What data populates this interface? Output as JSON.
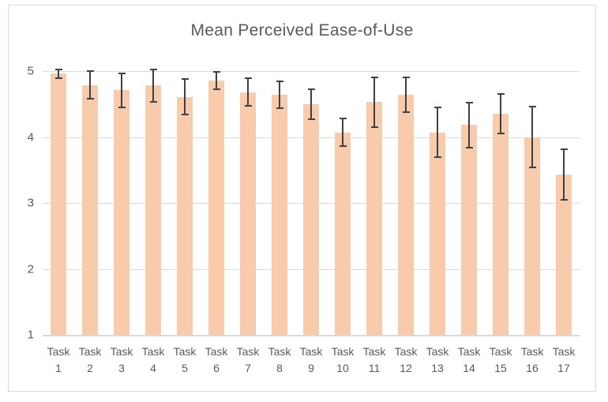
{
  "chart_data": {
    "type": "bar",
    "title": "Mean Perceived Ease-of-Use",
    "xlabel": "",
    "ylabel": "",
    "categories": [
      "Task 1",
      "Task 2",
      "Task 3",
      "Task 4",
      "Task 5",
      "Task 6",
      "Task 7",
      "Task 8",
      "Task 9",
      "Task 10",
      "Task 11",
      "Task 12",
      "Task 13",
      "Task 14",
      "Task 15",
      "Task 16",
      "Task 17"
    ],
    "values": [
      4.96,
      4.79,
      4.71,
      4.78,
      4.61,
      4.86,
      4.68,
      4.64,
      4.5,
      4.07,
      4.53,
      4.64,
      4.07,
      4.18,
      4.35,
      4.0,
      3.43
    ],
    "error_bars": [
      0.07,
      0.21,
      0.26,
      0.25,
      0.27,
      0.13,
      0.21,
      0.2,
      0.23,
      0.21,
      0.38,
      0.26,
      0.38,
      0.34,
      0.3,
      0.46,
      0.38
    ],
    "ylim": [
      1,
      5
    ],
    "yticks": [
      1,
      2,
      3,
      4,
      5
    ],
    "grid": true,
    "legend": false,
    "colors": {
      "bar_fill": "#f8cbad",
      "error_bar": "#404040",
      "gridline": "#d9d9d9",
      "frame_border": "#d9d9d9",
      "text": "#595959"
    }
  }
}
